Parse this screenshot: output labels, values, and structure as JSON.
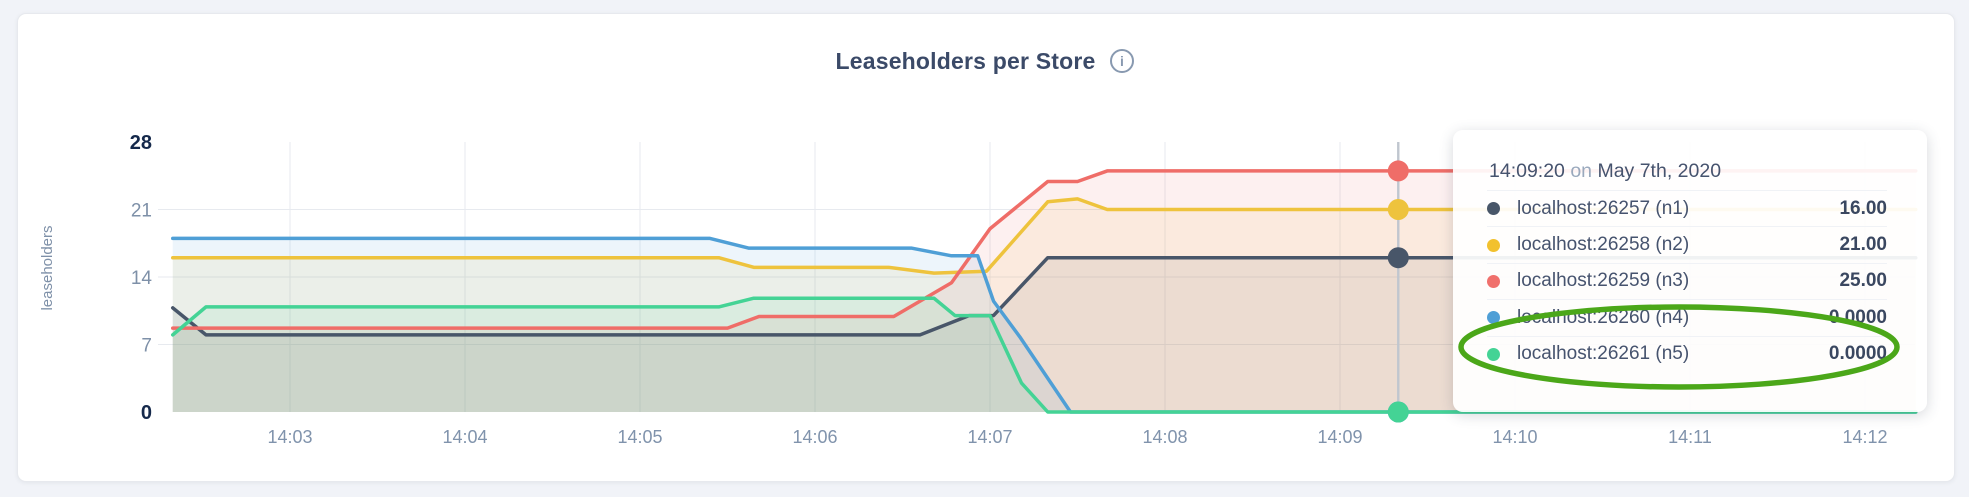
{
  "header": {
    "title": "Leaseholders per Store",
    "info_icon_glyph": "i"
  },
  "chart_data": {
    "type": "area",
    "title": "Leaseholders per Store",
    "ylabel": "leaseholders",
    "xlabel": "",
    "ylim": [
      0,
      28
    ],
    "fill_opacity": 0.1,
    "grid": true,
    "x_ticks": [
      {
        "label": "14:03",
        "minute": 3
      },
      {
        "label": "14:04",
        "minute": 4
      },
      {
        "label": "14:05",
        "minute": 5
      },
      {
        "label": "14:06",
        "minute": 6
      },
      {
        "label": "14:07",
        "minute": 7
      },
      {
        "label": "14:08",
        "minute": 8
      },
      {
        "label": "14:09",
        "minute": 9
      },
      {
        "label": "14:10",
        "minute": 10
      },
      {
        "label": "14:11",
        "minute": 11
      },
      {
        "label": "14:12",
        "minute": 12
      }
    ],
    "y_ticks": [
      {
        "label": "0",
        "value": 0,
        "emphasis": true,
        "grid": false
      },
      {
        "label": "7",
        "value": 7,
        "emphasis": false,
        "grid": true
      },
      {
        "label": "14",
        "value": 14,
        "emphasis": false,
        "grid": true
      },
      {
        "label": "21",
        "value": 21,
        "emphasis": false,
        "grid": true
      },
      {
        "label": "28",
        "value": 28,
        "emphasis": true,
        "grid": false
      }
    ],
    "series": [
      {
        "name": "localhost:26257 (n1)",
        "color": "#485669",
        "points": [
          [
            2.33,
            10.8
          ],
          [
            2.52,
            8
          ],
          [
            6.6,
            8
          ],
          [
            6.88,
            10
          ],
          [
            7.02,
            10
          ],
          [
            7.33,
            16
          ],
          [
            12.29,
            16
          ]
        ]
      },
      {
        "name": "localhost:26258 (n2)",
        "color": "#eec33d",
        "points": [
          [
            2.33,
            16
          ],
          [
            5.45,
            16
          ],
          [
            5.65,
            15
          ],
          [
            6.42,
            15
          ],
          [
            6.68,
            14.4
          ],
          [
            6.98,
            14.6
          ],
          [
            7.33,
            21.8
          ],
          [
            7.5,
            22.1
          ],
          [
            7.67,
            21
          ],
          [
            12.29,
            21
          ]
        ]
      },
      {
        "name": "localhost:26259 (n3)",
        "color": "#ef6d68",
        "points": [
          [
            2.33,
            8.7
          ],
          [
            5.5,
            8.7
          ],
          [
            5.68,
            9.9
          ],
          [
            6.45,
            9.9
          ],
          [
            6.78,
            13.4
          ],
          [
            7.0,
            19
          ],
          [
            7.33,
            23.9
          ],
          [
            7.5,
            23.9
          ],
          [
            7.67,
            25
          ],
          [
            12.29,
            25
          ]
        ]
      },
      {
        "name": "localhost:26260 (n4)",
        "color": "#4f9fd6",
        "points": [
          [
            2.33,
            18
          ],
          [
            5.4,
            18
          ],
          [
            5.62,
            17
          ],
          [
            6.55,
            17
          ],
          [
            6.78,
            16.2
          ],
          [
            6.93,
            16.2
          ],
          [
            7.02,
            11.5
          ],
          [
            7.17,
            7.8
          ],
          [
            7.46,
            0
          ],
          [
            12.29,
            0
          ]
        ]
      },
      {
        "name": "localhost:26261 (n5)",
        "color": "#44d395",
        "points": [
          [
            2.33,
            8
          ],
          [
            2.52,
            10.9
          ],
          [
            5.45,
            10.9
          ],
          [
            5.65,
            11.8
          ],
          [
            6.68,
            11.8
          ],
          [
            6.8,
            10
          ],
          [
            7.0,
            10
          ],
          [
            7.18,
            3
          ],
          [
            7.33,
            0
          ],
          [
            12.29,
            0
          ]
        ]
      }
    ],
    "hover": {
      "time_minute": 9.333,
      "dots": [
        {
          "series_index": 2,
          "value": 25
        },
        {
          "series_index": 1,
          "value": 21
        },
        {
          "series_index": 0,
          "value": 16
        },
        {
          "series_index": 3,
          "value": 0
        },
        {
          "series_index": 4,
          "value": 0
        }
      ]
    }
  },
  "tooltip": {
    "time": "14:09:20",
    "conjunction": "on",
    "date": "May 7th, 2020",
    "rows": [
      {
        "name": "localhost:26257 (n1)",
        "value": "16.00",
        "color": "#485669"
      },
      {
        "name": "localhost:26258 (n2)",
        "value": "21.00",
        "color": "#f2c12e"
      },
      {
        "name": "localhost:26259 (n3)",
        "value": "25.00",
        "color": "#f0706c"
      },
      {
        "name": "localhost:26260 (n4)",
        "value": "0.0000",
        "color": "#4f9fd6"
      },
      {
        "name": "localhost:26261 (n5)",
        "value": "0.0000",
        "color": "#44d395"
      }
    ],
    "circled_row_indices": [
      3,
      4
    ],
    "annotation_color": "#4ba719"
  }
}
